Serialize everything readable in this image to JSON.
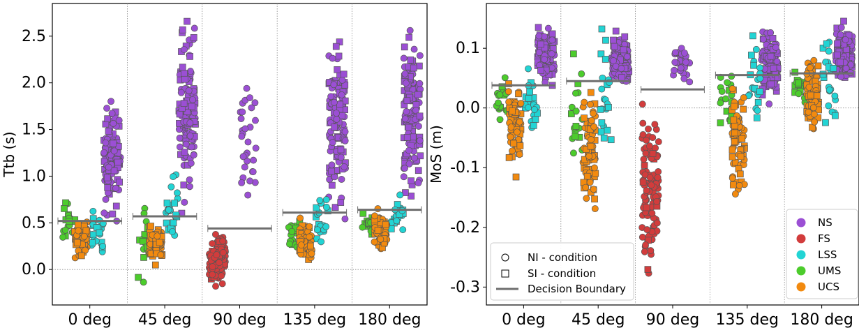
{
  "chart_data": [
    {
      "type": "scatter",
      "ylabel": "Ttb (s)",
      "xlabel": "",
      "categories": [
        "0 deg",
        "45 deg",
        "90 deg",
        "135 deg",
        "180 deg"
      ],
      "yticks": [
        "0.0",
        "0.5",
        "1.0",
        "1.5",
        "2.0",
        "2.5"
      ],
      "ytick_values": [
        0.0,
        0.5,
        1.0,
        1.5,
        2.0,
        2.5
      ],
      "ylim": [
        -0.38,
        2.85
      ],
      "reference_line": 0.0,
      "decision_boundary": [
        0.52,
        0.57,
        0.44,
        0.61,
        0.64
      ],
      "series": [
        {
          "name": "NS",
          "color": "#9b4fd4",
          "ranges": [
            [
              0.4,
              1.88,
              0.4
            ],
            [
              0.4,
              2.75,
              0.44
            ],
            [
              0.45,
              2.12,
              0.0
            ],
            [
              0.3,
              2.65,
              0.42
            ],
            [
              0.45,
              2.76,
              0.52
            ]
          ]
        },
        {
          "name": "FS",
          "color": "#d23c3c",
          "ranges": [
            null,
            null,
            [
              -0.23,
              0.46,
              0.09
            ],
            null,
            null
          ]
        },
        {
          "name": "LSS",
          "color": "#22d4d4",
          "ranges": [
            [
              0.1,
              0.71,
              0.4
            ],
            [
              0.1,
              1.36,
              0.45
            ],
            null,
            [
              0.1,
              0.97,
              0.42
            ],
            [
              0.25,
              0.93,
              0.42
            ]
          ]
        },
        {
          "name": "UMS",
          "color": "#4ccc2c",
          "ranges": [
            [
              0.22,
              0.78,
              0.4
            ],
            [
              -0.18,
              0.86,
              0.45
            ],
            null,
            [
              0.1,
              0.64,
              0.42
            ],
            [
              0.27,
              0.67,
              0.42
            ]
          ]
        },
        {
          "name": "UCS",
          "color": "#f28a0f",
          "ranges": [
            [
              0.05,
              0.58,
              0.4
            ],
            [
              0.0,
              0.56,
              0.45
            ],
            null,
            [
              0.05,
              0.6,
              0.42
            ],
            [
              0.14,
              0.7,
              0.42
            ]
          ]
        }
      ]
    },
    {
      "type": "scatter",
      "ylabel": "MoS (m)",
      "xlabel": "",
      "categories": [
        "0 deg",
        "45 deg",
        "90 deg",
        "135 deg",
        "180 deg"
      ],
      "yticks": [
        "-0.3",
        "-0.2",
        "-0.1",
        "0.0",
        "0.1"
      ],
      "ytick_values": [
        -0.3,
        -0.2,
        -0.1,
        0.0,
        0.1
      ],
      "ylim": [
        -0.33,
        0.175
      ],
      "reference_line": 0.0,
      "decision_boundary": [
        0.038,
        0.045,
        0.031,
        0.055,
        0.058
      ],
      "series": [
        {
          "name": "NS",
          "color": "#9b4fd4",
          "ranges": [
            [
              0.02,
              0.15,
              0.4
            ],
            [
              0.02,
              0.14,
              0.44
            ],
            [
              0.03,
              0.12,
              0.0
            ],
            [
              0.0,
              0.14,
              0.42
            ],
            [
              0.02,
              0.15,
              0.52
            ]
          ]
        },
        {
          "name": "FS",
          "color": "#d23c3c",
          "ranges": [
            null,
            null,
            [
              -0.31,
              0.03,
              0.09
            ],
            null,
            null
          ]
        },
        {
          "name": "LSS",
          "color": "#22d4d4",
          "ranges": [
            [
              -0.09,
              0.09,
              0.4
            ],
            [
              -0.12,
              0.15,
              0.45
            ],
            null,
            [
              -0.04,
              0.13,
              0.42
            ],
            [
              -0.04,
              0.13,
              0.42
            ]
          ]
        },
        {
          "name": "UMS",
          "color": "#4ccc2c",
          "ranges": [
            [
              -0.04,
              0.07,
              0.4
            ],
            [
              -0.12,
              0.12,
              0.45
            ],
            null,
            [
              -0.06,
              0.08,
              0.42
            ],
            [
              -0.01,
              0.07,
              0.42
            ]
          ]
        },
        {
          "name": "UCS",
          "color": "#f28a0f",
          "ranges": [
            [
              -0.12,
              0.06,
              0.4
            ],
            [
              -0.21,
              0.07,
              0.45
            ],
            null,
            [
              -0.18,
              0.07,
              0.42
            ],
            [
              -0.06,
              0.09,
              0.42
            ]
          ]
        }
      ],
      "legend_marker": {
        "position": "bottom-left",
        "entries": [
          "NI - condition",
          "SI - condition",
          "Decision Boundary"
        ]
      },
      "legend_class": {
        "position": "bottom-right",
        "entries": [
          "NS",
          "FS",
          "LSS",
          "UMS",
          "UCS"
        ]
      }
    }
  ]
}
